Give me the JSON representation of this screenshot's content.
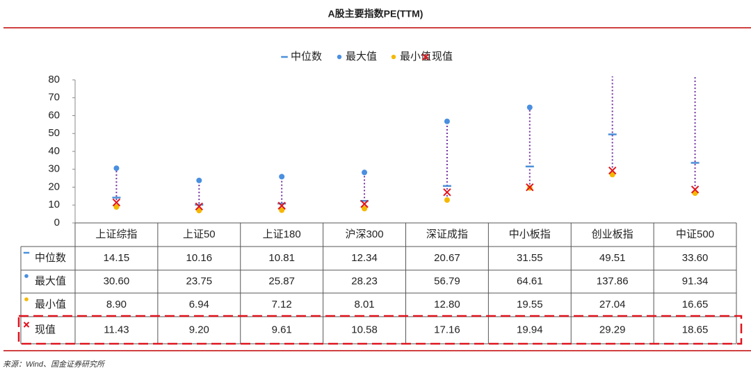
{
  "chart_data": {
    "type": "range-table",
    "title": "A股主要指数PE(TTM)",
    "source": "来源：Wind、国金证券研究所",
    "categories": [
      "上证综指",
      "上证50",
      "上证180",
      "沪深300",
      "深证成指",
      "中小板指",
      "创业板指",
      "中证500"
    ],
    "ylim": [
      0,
      80
    ],
    "yticks": [
      0,
      10,
      20,
      30,
      40,
      50,
      60,
      70,
      80
    ],
    "range_color": "#7030a0",
    "series": [
      {
        "name": "中位数",
        "color": "#4a8fd8",
        "marker": "dash",
        "values": [
          14.15,
          10.16,
          10.81,
          12.34,
          20.67,
          31.55,
          49.51,
          33.6
        ],
        "value_labels": [
          "14.15",
          "10.16",
          "10.81",
          "12.34",
          "20.67",
          "31.55",
          "49.51",
          "33.60"
        ]
      },
      {
        "name": "最大值",
        "color": "#4a8fe0",
        "marker": "dot",
        "values": [
          30.6,
          23.75,
          25.87,
          28.23,
          56.79,
          64.61,
          137.86,
          91.34
        ],
        "value_labels": [
          "30.60",
          "23.75",
          "25.87",
          "28.23",
          "56.79",
          "64.61",
          "137.86",
          "91.34"
        ]
      },
      {
        "name": "最小值",
        "color": "#f5b800",
        "marker": "dot",
        "values": [
          8.9,
          6.94,
          7.12,
          8.01,
          12.8,
          19.55,
          27.04,
          16.65
        ],
        "value_labels": [
          "8.90",
          "6.94",
          "7.12",
          "8.01",
          "12.80",
          "19.55",
          "27.04",
          "16.65"
        ]
      },
      {
        "name": "现值",
        "color": "#e0141e",
        "marker": "cross",
        "values": [
          11.43,
          9.2,
          9.61,
          10.58,
          17.16,
          19.94,
          29.29,
          18.65
        ],
        "value_labels": [
          "11.43",
          "9.20",
          "9.61",
          "10.58",
          "17.16",
          "19.94",
          "29.29",
          "18.65"
        ]
      }
    ]
  }
}
